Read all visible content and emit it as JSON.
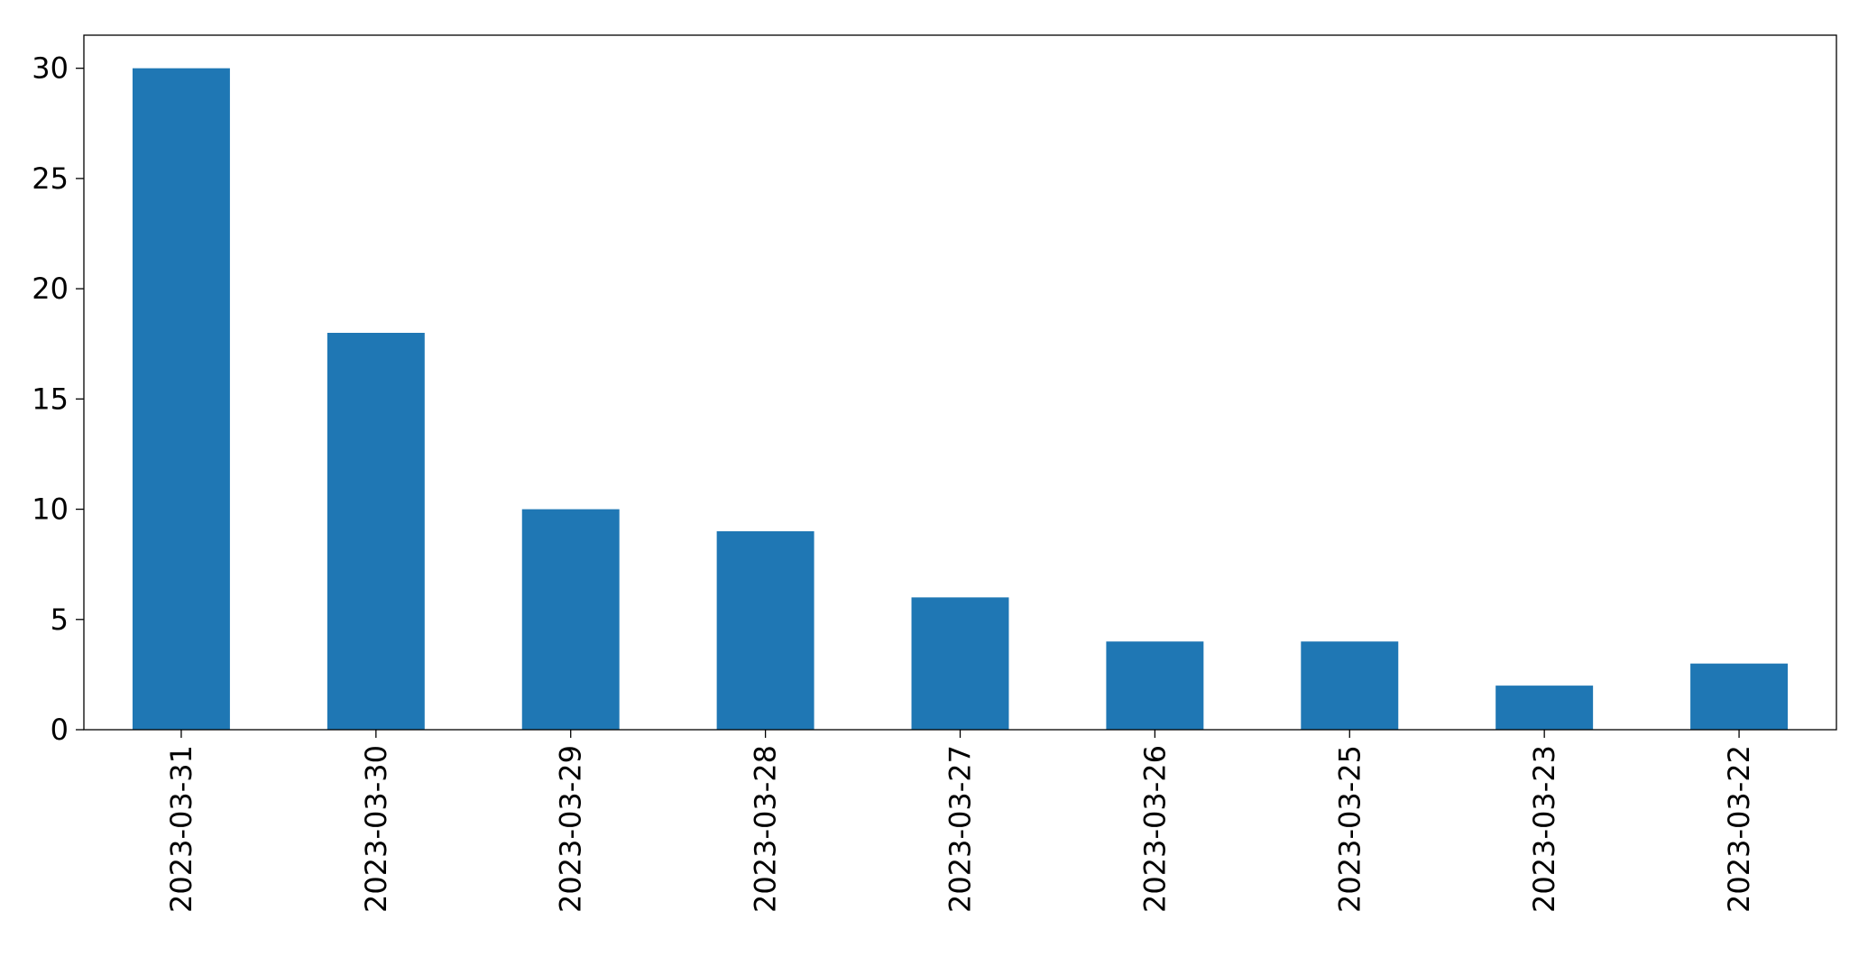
{
  "chart_data": {
    "type": "bar",
    "title": "",
    "xlabel": "",
    "ylabel": "",
    "categories": [
      "2023-03-31",
      "2023-03-30",
      "2023-03-29",
      "2023-03-28",
      "2023-03-27",
      "2023-03-26",
      "2023-03-25",
      "2023-03-23",
      "2023-03-22"
    ],
    "values": [
      30,
      18,
      10,
      9,
      6,
      4,
      4,
      2,
      3
    ],
    "ylim": [
      0,
      31.5
    ],
    "yticks": [
      0,
      5,
      10,
      15,
      20,
      25,
      30
    ],
    "bar_color": "#1f77b4",
    "grid": false,
    "legend": "none"
  }
}
